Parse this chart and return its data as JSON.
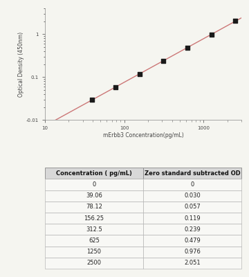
{
  "concentrations": [
    39.06,
    78.12,
    156.25,
    312.5,
    625,
    1250,
    2500
  ],
  "od_values": [
    0.03,
    0.057,
    0.119,
    0.239,
    0.479,
    0.976,
    2.051
  ],
  "xlim": [
    10,
    3000
  ],
  "ylim_log": [
    0.01,
    4.0
  ],
  "xlabel": "mErbb3 Concentration(pg/mL)",
  "ylabel": "Optical Density (450nm)",
  "line_color": "#cc7777",
  "marker_color": "#1a1a1a",
  "table_headers": [
    "Concentration ( pg/mL)",
    "Zero standard subtracted OD"
  ],
  "table_concentrations": [
    "0",
    "39.06",
    "78.12",
    "156.25",
    "312.5",
    "625",
    "1250",
    "2500"
  ],
  "table_od_values": [
    "0",
    "0.030",
    "0.057",
    "0.119",
    "0.239",
    "0.479",
    "0.976",
    "2.051"
  ],
  "bg_color": "#f5f5f0",
  "plot_bg": "#f5f5f0"
}
